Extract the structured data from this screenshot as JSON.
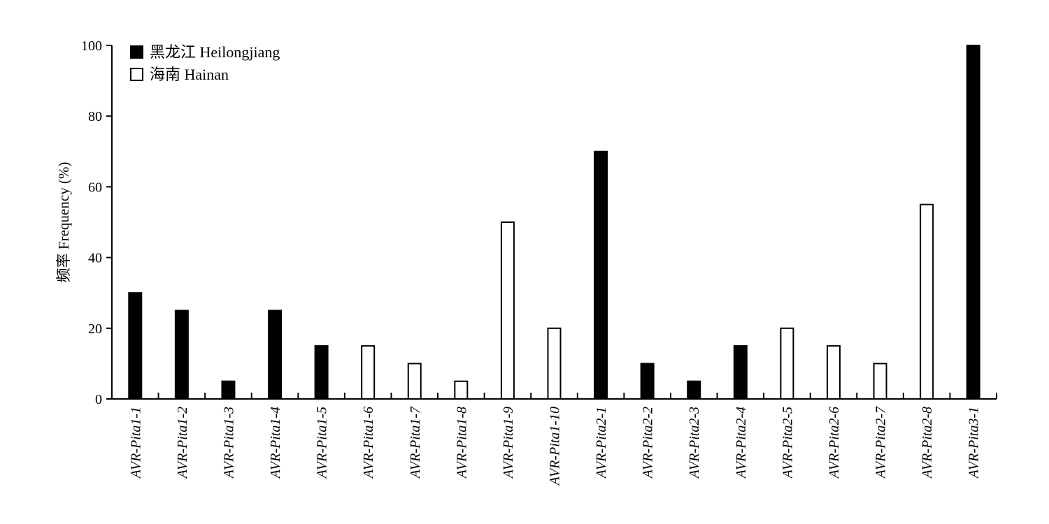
{
  "chart_data": {
    "type": "bar",
    "title": "",
    "xlabel": "",
    "ylabel": "频率 Frequency (%)",
    "ylim": [
      0,
      100
    ],
    "yticks": [
      0,
      20,
      40,
      60,
      80,
      100
    ],
    "grid": false,
    "legend_position": "top-left",
    "categories": [
      "AVR-Pita1-1",
      "AVR-Pita1-2",
      "AVR-Pita1-3",
      "AVR-Pita1-4",
      "AVR-Pita1-5",
      "AVR-Pita1-6",
      "AVR-Pita1-7",
      "AVR-Pita1-8",
      "AVR-Pita1-9",
      "AVR-Pita1-10",
      "AVR-Pita2-1",
      "AVR-Pita2-2",
      "AVR-Pita2-3",
      "AVR-Pita2-4",
      "AVR-Pita2-5",
      "AVR-Pita2-6",
      "AVR-Pita2-7",
      "AVR-Pita2-8",
      "AVR-Pita3-1"
    ],
    "series": [
      {
        "name": "黑龙江 Heilongjiang",
        "fill": "#000000",
        "values": [
          30,
          25,
          5,
          25,
          15,
          0,
          0,
          0,
          0,
          0,
          70,
          10,
          5,
          15,
          0,
          0,
          0,
          0,
          100
        ]
      },
      {
        "name": "海南 Hainan",
        "fill": "#ffffff",
        "values": [
          0,
          0,
          0,
          0,
          0,
          15,
          10,
          5,
          50,
          20,
          0,
          0,
          0,
          0,
          20,
          15,
          10,
          55,
          0
        ]
      }
    ]
  }
}
